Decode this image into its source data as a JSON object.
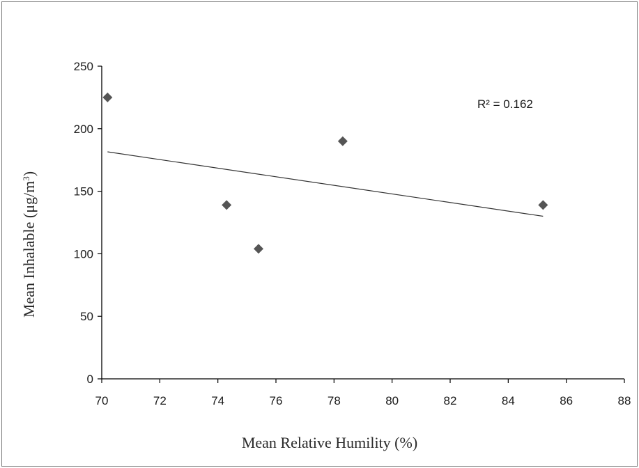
{
  "chart_data": {
    "type": "scatter",
    "xlabel": "Mean Relative Humility (%)",
    "ylabel_main": "Mean Inhalable (μg/m",
    "ylabel_sup": "3",
    "ylabel_close": ")",
    "xlim": [
      70,
      88
    ],
    "ylim": [
      0,
      250
    ],
    "x_ticks": [
      70,
      72,
      74,
      76,
      78,
      80,
      82,
      84,
      86,
      88
    ],
    "y_ticks": [
      0,
      50,
      100,
      150,
      200,
      250
    ],
    "points": [
      {
        "x": 70.2,
        "y": 225
      },
      {
        "x": 74.3,
        "y": 139
      },
      {
        "x": 75.4,
        "y": 104
      },
      {
        "x": 78.3,
        "y": 190
      },
      {
        "x": 85.2,
        "y": 139
      }
    ],
    "trendline": {
      "x": [
        70.2,
        85.2
      ],
      "y": [
        181.5,
        130
      ]
    },
    "annotation": "R² = 0.162",
    "grid": false,
    "marker": "diamond",
    "marker_color": "#555555",
    "line_color": "#333333"
  }
}
